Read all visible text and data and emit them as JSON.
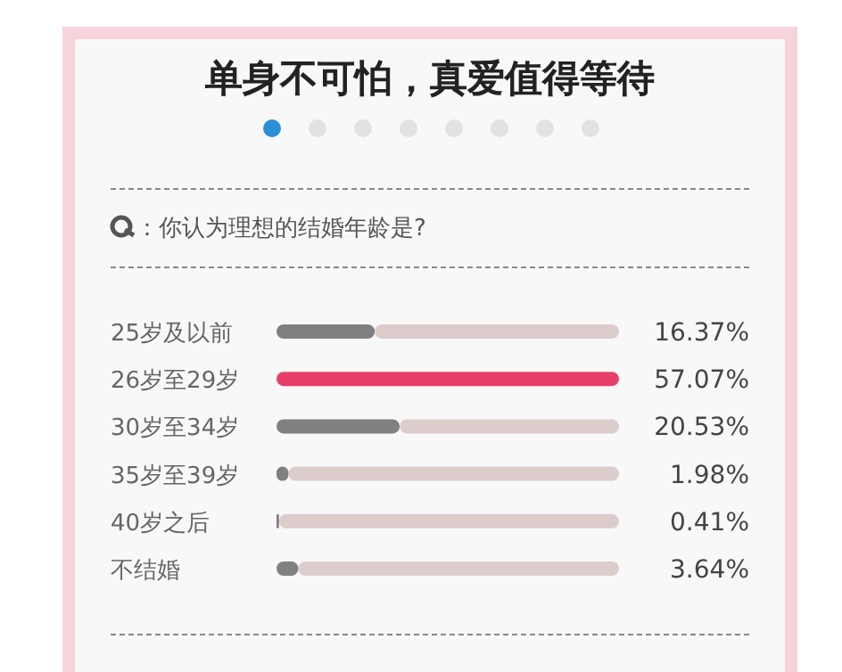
{
  "chart_data": {
    "type": "bar",
    "orientation": "horizontal",
    "title": "单身不可怕，真爱值得等待",
    "subtitle": "：你认为理想的结婚年龄是?",
    "categories": [
      "25岁及以前",
      "26岁至29岁",
      "30岁至34岁",
      "35岁至39岁",
      "40岁之后",
      "不结婚"
    ],
    "values": [
      16.37,
      57.07,
      20.53,
      1.98,
      0.41,
      3.64
    ],
    "colors": [
      "#808080",
      "#e83e6a",
      "#808080",
      "#808080",
      "#808080",
      "#808080"
    ],
    "value_labels": [
      "16.37%",
      "57.07%",
      "20.53%",
      "1.98%",
      "0.41%",
      "3.64%"
    ]
  }
}
